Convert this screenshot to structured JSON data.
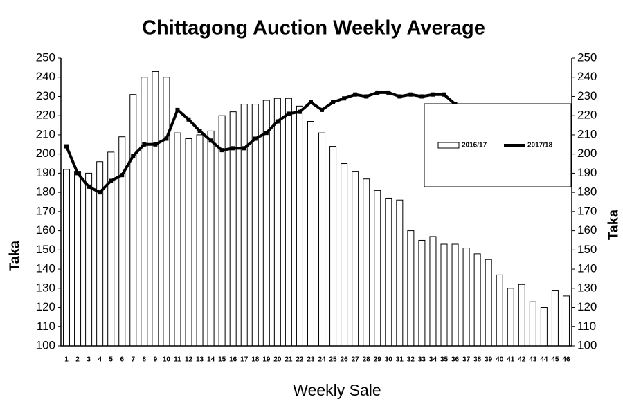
{
  "chart_data": {
    "type": "bar",
    "title": "Chittagong Auction Weekly Average",
    "x_label": "Weekly Sale",
    "y_label": "Taka",
    "y2_label": "Taka",
    "categories": [
      "1",
      "2",
      "3",
      "4",
      "5",
      "6",
      "7",
      "8",
      "9",
      "10",
      "11",
      "12",
      "13",
      "14",
      "15",
      "16",
      "17",
      "18",
      "19",
      "20",
      "21",
      "22",
      "23",
      "24",
      "25",
      "26",
      "27",
      "28",
      "29",
      "30",
      "31",
      "32",
      "33",
      "34",
      "35",
      "36",
      "37",
      "38",
      "39",
      "40",
      "41",
      "42",
      "43",
      "44",
      "45",
      "46"
    ],
    "series": [
      {
        "name": "2016/17",
        "type": "bar",
        "color": "#ffffff",
        "values": [
          192,
          191,
          190,
          196,
          201,
          209,
          231,
          240,
          243,
          240,
          211,
          208,
          210,
          212,
          220,
          222,
          226,
          226,
          228,
          229,
          229,
          225,
          217,
          211,
          204,
          195,
          191,
          187,
          181,
          177,
          176,
          160,
          155,
          157,
          153,
          153,
          151,
          148,
          145,
          137,
          130,
          132,
          123,
          120,
          129,
          126
        ]
      },
      {
        "name": "2017/18",
        "type": "line",
        "color": "#000000",
        "values": [
          204,
          190,
          183,
          180,
          186,
          189,
          199,
          205,
          205,
          208,
          223,
          218,
          212,
          207,
          202,
          203,
          203,
          208,
          211,
          217,
          221,
          222,
          227,
          223,
          227,
          229,
          231,
          230,
          232,
          232,
          230,
          231,
          230,
          231,
          231,
          226,
          null,
          null,
          null,
          null,
          null,
          null,
          null,
          null,
          null,
          null
        ]
      }
    ],
    "ylim": [
      100,
      250
    ],
    "yticks": [
      100,
      110,
      120,
      130,
      140,
      150,
      160,
      170,
      180,
      190,
      200,
      210,
      220,
      230,
      240,
      250
    ],
    "y2lim": [
      100,
      250
    ],
    "y2ticks": [
      100,
      110,
      120,
      130,
      140,
      150,
      160,
      170,
      180,
      190,
      200,
      210,
      220,
      230,
      240,
      250
    ],
    "grid": false,
    "legend": "right"
  }
}
